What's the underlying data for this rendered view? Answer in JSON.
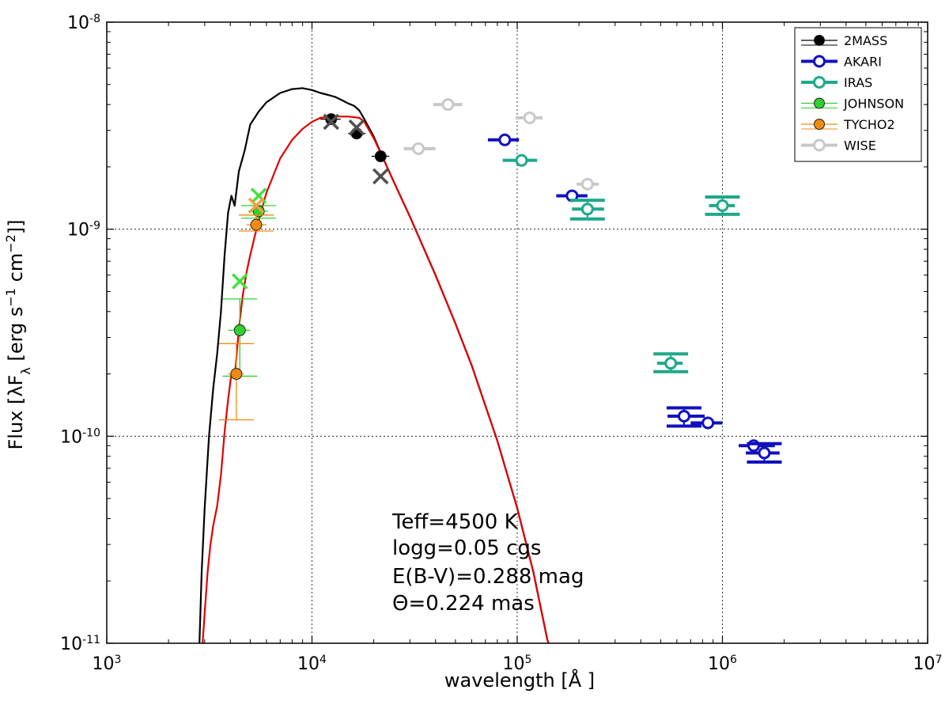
{
  "chart_data": {
    "type": "scatter",
    "title": "",
    "xlabel_parts": [
      "wavelength [",
      "Å",
      " ]"
    ],
    "ylabel": "Flux [λF",
    "ylabel_sub": "λ",
    "ylabel_rest": " [erg  s",
    "ylabel_exp1": "−1",
    "ylabel_mid": "  cm",
    "ylabel_exp2": "−2",
    "ylabel_end": "]]",
    "xscale": "log",
    "yscale": "log",
    "xlim": [
      1000,
      10000000
    ],
    "ylim": [
      1e-11,
      1e-08
    ],
    "grid": true,
    "legend_position": "top-right",
    "x_tick_labels": [
      {
        "base": "10",
        "exp": "3"
      },
      {
        "base": "10",
        "exp": "4"
      },
      {
        "base": "10",
        "exp": "5"
      },
      {
        "base": "10",
        "exp": "6"
      },
      {
        "base": "10",
        "exp": "7"
      }
    ],
    "y_tick_labels": [
      {
        "base": "10",
        "exp": "-11"
      },
      {
        "base": "10",
        "exp": "-10"
      },
      {
        "base": "10",
        "exp": "-9"
      },
      {
        "base": "10",
        "exp": "-8"
      }
    ],
    "annotations": [
      "Teff=4500 K",
      "logg=0.05 cgs",
      "E(B-V)=0.288 mag",
      "Θ=0.224 mas"
    ],
    "model_curves": [
      {
        "color": "#000000",
        "points": [
          [
            2830,
            1e-11
          ],
          [
            2900,
            2.2e-11
          ],
          [
            3000,
            4.5e-11
          ],
          [
            3150,
            1e-10
          ],
          [
            3300,
            1.7e-10
          ],
          [
            3450,
            2.5e-10
          ],
          [
            3600,
            4e-10
          ],
          [
            3750,
            7.5e-10
          ],
          [
            3900,
            1.2e-09
          ],
          [
            4050,
            1.45e-09
          ],
          [
            4200,
            1.3e-09
          ],
          [
            4400,
            1.9e-09
          ],
          [
            4700,
            2.4e-09
          ],
          [
            5000,
            3.2e-09
          ],
          [
            5500,
            3.7e-09
          ],
          [
            6000,
            4.1e-09
          ],
          [
            7000,
            4.55e-09
          ],
          [
            8000,
            4.75e-09
          ],
          [
            9000,
            4.8e-09
          ],
          [
            10000,
            4.7e-09
          ],
          [
            11000,
            4.55e-09
          ],
          [
            12000,
            4.45e-09
          ],
          [
            13000,
            4.35e-09
          ],
          [
            14000,
            4.2e-09
          ],
          [
            15000,
            4.05e-09
          ],
          [
            16000,
            3.95e-09
          ],
          [
            17000,
            3.75e-09
          ],
          [
            18000,
            3.4e-09
          ],
          [
            20000,
            2.8e-09
          ],
          [
            22000,
            2.25e-09
          ],
          [
            25000,
            1.7e-09
          ],
          [
            30000,
            1.15e-09
          ],
          [
            40000,
            6e-10
          ],
          [
            50000,
            3.5e-10
          ],
          [
            60000,
            2.2e-10
          ],
          [
            80000,
            9.5e-11
          ],
          [
            100000,
            4.5e-11
          ],
          [
            120000,
            2.2e-11
          ],
          [
            140000,
            1.05e-11
          ],
          [
            142000,
            1e-11
          ]
        ]
      },
      {
        "color": "#e00000",
        "points": [
          [
            2930,
            1e-11
          ],
          [
            3000,
            1.4e-11
          ],
          [
            3100,
            2.2e-11
          ],
          [
            3200,
            3e-11
          ],
          [
            3300,
            3.7e-11
          ],
          [
            3450,
            4.6e-11
          ],
          [
            3600,
            6.5e-11
          ],
          [
            3750,
            1.05e-10
          ],
          [
            3900,
            1.5e-10
          ],
          [
            4050,
            2e-10
          ],
          [
            4200,
            1.9e-10
          ],
          [
            4400,
            3.3e-10
          ],
          [
            4600,
            4.8e-10
          ],
          [
            4800,
            6.2e-10
          ],
          [
            5000,
            7.5e-10
          ],
          [
            5300,
            9.5e-10
          ],
          [
            5700,
            1.25e-09
          ],
          [
            6000,
            1.5e-09
          ],
          [
            7000,
            2.2e-09
          ],
          [
            8000,
            2.7e-09
          ],
          [
            9000,
            3.05e-09
          ],
          [
            10000,
            3.3e-09
          ],
          [
            11000,
            3.45e-09
          ],
          [
            12500,
            3.5e-09
          ],
          [
            15000,
            3.5e-09
          ],
          [
            17000,
            3.45e-09
          ],
          [
            18000,
            3.3e-09
          ],
          [
            20000,
            2.75e-09
          ],
          [
            22000,
            2.25e-09
          ],
          [
            25000,
            1.7e-09
          ],
          [
            30000,
            1.15e-09
          ],
          [
            40000,
            6e-10
          ],
          [
            50000,
            3.5e-10
          ],
          [
            60000,
            2.2e-10
          ],
          [
            80000,
            9.5e-11
          ],
          [
            100000,
            4.5e-11
          ],
          [
            120000,
            2.2e-11
          ],
          [
            140000,
            1.05e-11
          ],
          [
            142000,
            1e-11
          ]
        ]
      }
    ],
    "series": [
      {
        "name": "2MASS",
        "color": "#000000",
        "marker": "filled",
        "points": [
          {
            "x": 12400,
            "y": 3.4e-09,
            "xerr": [
              11000,
              13800
            ]
          },
          {
            "x": 16500,
            "y": 2.9e-09,
            "xerr": [
              15000,
              18200
            ]
          },
          {
            "x": 21600,
            "y": 2.25e-09,
            "xerr": [
              19500,
              23800
            ]
          }
        ]
      },
      {
        "name": "AKARI",
        "color": "#1010c0",
        "marker": "open",
        "points": [
          {
            "x": 87000,
            "y": 2.7e-09,
            "xerr": [
              72000,
              102000
            ]
          },
          {
            "x": 185000,
            "y": 1.45e-09,
            "xerr": [
              155000,
              220000
            ]
          },
          {
            "x": 650000,
            "y": 1.25e-10,
            "xerr": [
              540000,
              820000
            ],
            "yerr": [
              1.12e-10,
              1.37e-10
            ]
          },
          {
            "x": 850000,
            "y": 1.16e-10,
            "xerr": [
              700000,
              1000000
            ]
          },
          {
            "x": 1420000,
            "y": 9e-11,
            "xerr": [
              1200000,
              1800000
            ]
          },
          {
            "x": 1600000,
            "y": 8.3e-11,
            "xerr": [
              1300000,
              1900000
            ],
            "yerr": [
              7.5e-11,
              9.2e-11
            ]
          }
        ]
      },
      {
        "name": "IRAS",
        "color": "#1ea88a",
        "marker": "open",
        "points": [
          {
            "x": 105000,
            "y": 2.15e-09,
            "xerr": [
              85000,
              125000
            ]
          },
          {
            "x": 220000,
            "y": 1.25e-09,
            "xerr": [
              185000,
              265000
            ],
            "yerr": [
              1.12e-09,
              1.38e-09
            ]
          },
          {
            "x": 560000,
            "y": 2.25e-10,
            "xerr": [
              480000,
              640000
            ],
            "yerr": [
              2.05e-10,
              2.5e-10
            ]
          },
          {
            "x": 1000000,
            "y": 1.3e-09,
            "xerr": [
              860000,
              1150000
            ],
            "yerr": [
              1.18e-09,
              1.43e-09
            ]
          }
        ]
      },
      {
        "name": "JOHNSON",
        "color": "#30d030",
        "marker": "filled",
        "points": [
          {
            "x": 4450,
            "y": 3.25e-10,
            "xerr": [
              3900,
              5000
            ],
            "yerr": [
              1.95e-10,
              4.6e-10
            ]
          },
          {
            "x": 5500,
            "y": 1.22e-09,
            "xerr": [
              4900,
              6100
            ],
            "yerr": [
              1.13e-09,
              1.3e-09
            ]
          }
        ]
      },
      {
        "name": "TYCHO2",
        "color": "#f08a10",
        "marker": "filled",
        "points": [
          {
            "x": 4280,
            "y": 2e-10,
            "xerr": [
              3900,
              4650
            ],
            "yerr": [
              1.2e-10,
              2.8e-10
            ]
          },
          {
            "x": 5350,
            "y": 1.05e-09,
            "xerr": [
              4800,
              6000
            ],
            "yerr": [
              9.8e-10,
              1.17e-09
            ]
          }
        ]
      },
      {
        "name": "WISE",
        "color": "#c8c8c8",
        "marker": "open",
        "points": [
          {
            "x": 33000,
            "y": 2.45e-09,
            "xerr": [
              28000,
              40000
            ]
          },
          {
            "x": 46000,
            "y": 4e-09,
            "xerr": [
              39000,
              54000
            ]
          },
          {
            "x": 115000,
            "y": 3.45e-09,
            "xerr": [
              98000,
              133000
            ]
          },
          {
            "x": 220000,
            "y": 1.65e-09,
            "xerr": [
              195000,
              250000
            ]
          }
        ]
      }
    ],
    "model_synthetic_points": [
      {
        "x": 12400,
        "y": 3.3e-09,
        "color": "#505050"
      },
      {
        "x": 16500,
        "y": 3.1e-09,
        "color": "#505050"
      },
      {
        "x": 21600,
        "y": 1.8e-09,
        "color": "#505050"
      },
      {
        "x": 4450,
        "y": 5.6e-10,
        "color": "#40e040"
      },
      {
        "x": 5500,
        "y": 1.45e-09,
        "color": "#40e040"
      },
      {
        "x": 5350,
        "y": 1.3e-09,
        "color": "#f0a040"
      }
    ]
  }
}
